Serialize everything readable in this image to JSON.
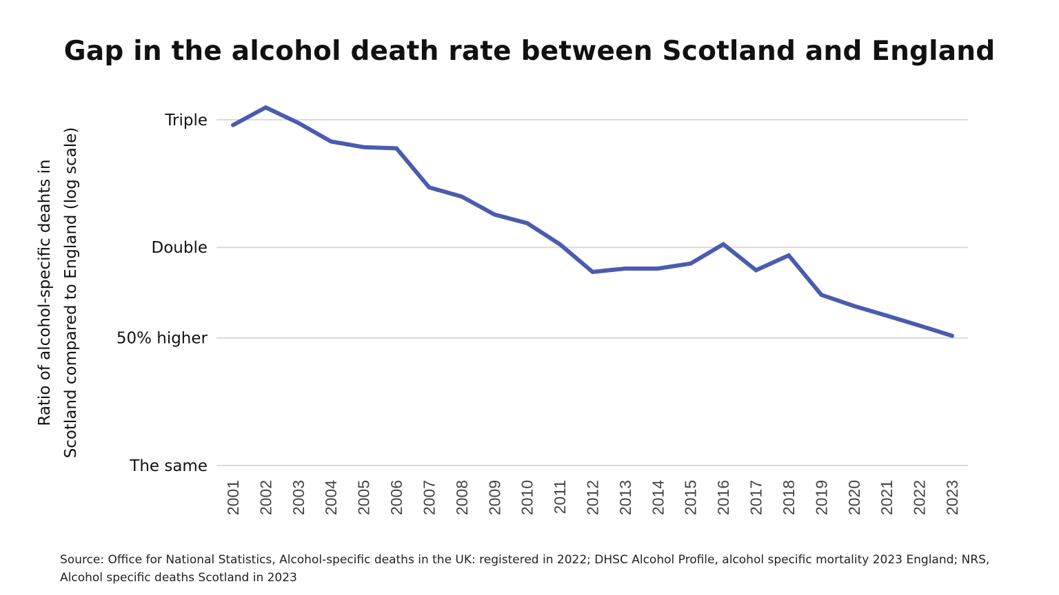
{
  "chart_data": {
    "type": "line",
    "title": "Gap in the alcohol death rate between Scotland and England",
    "ylabel": "Ratio of alcohol-specific deahts in Scotland compared to England  (log scale)",
    "ylabel_lines": [
      "Ratio of alcohol-specific deahts in",
      "Scotland compared to England  (log scale)"
    ],
    "yscale": "log",
    "ylim": [
      1,
      3.1
    ],
    "grid": true,
    "yticks": [
      {
        "value": 1,
        "label": "The same"
      },
      {
        "value": 1.5,
        "label": "50% higher"
      },
      {
        "value": 2,
        "label": "Double"
      },
      {
        "value": 3,
        "label": "Triple"
      }
    ],
    "x": [
      "2001",
      "2002",
      "2003",
      "2004",
      "2005",
      "2006",
      "2007",
      "2008",
      "2009",
      "2010",
      "2011",
      "2012",
      "2013",
      "2014",
      "2015",
      "2016",
      "2017",
      "2018",
      "2019",
      "2020",
      "2021",
      "2022",
      "2023"
    ],
    "series": [
      {
        "color": "#4a5cae",
        "values": [
          2.95,
          3.12,
          2.97,
          2.8,
          2.75,
          2.74,
          2.42,
          2.35,
          2.22,
          2.16,
          2.02,
          1.85,
          1.87,
          1.87,
          1.9,
          2.02,
          1.86,
          1.95,
          1.72,
          1.66,
          1.61,
          1.56,
          1.51
        ]
      }
    ],
    "source": "Source: Office for National Statistics, Alcohol-specific deaths in the UK: registered in 2022; DHSC Alcohol Profile, alcohol specific mortality 2023 England; NRS, Alcohol specific deaths Scotland in 2023"
  }
}
